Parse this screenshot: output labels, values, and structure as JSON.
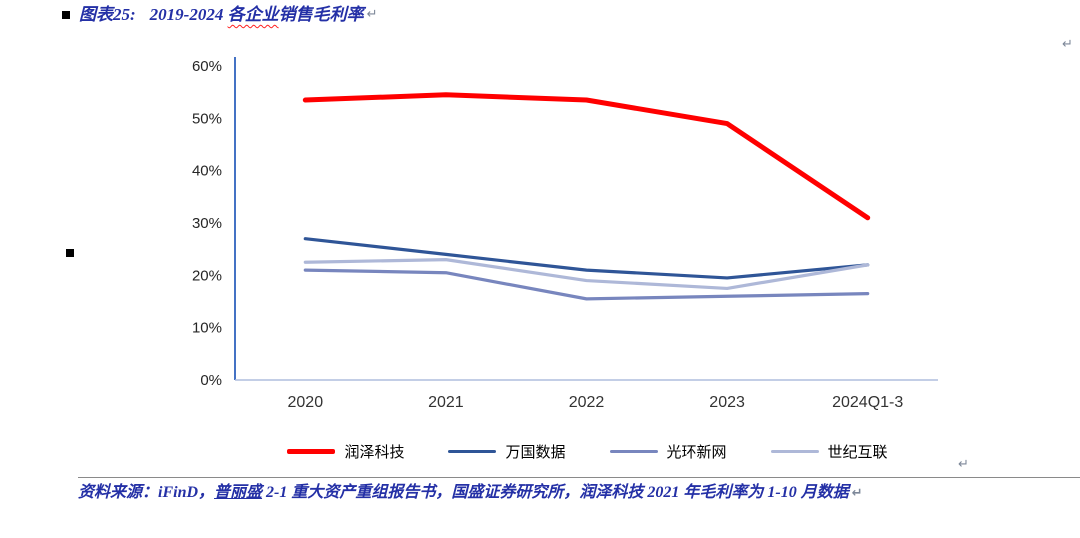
{
  "title": {
    "bullet": "■",
    "label": "图表25:",
    "pre": "2019-2024 ",
    "wavy": "各企业",
    "post": "销售毛利率"
  },
  "marks": {
    "paragraph": "↵",
    "side_bullet": "■"
  },
  "source": {
    "prefix": "资料来源：iFinD，",
    "link": "普丽盛",
    "suffix": " 2-1 重大资产重组报告书，国盛证券研究所，润泽科技 2021 年毛利率为 1-10 月数据"
  },
  "colors": {
    "heading_blue": "#2430A6",
    "axis_line": "#4472C4",
    "baseline": "#AFBEDD",
    "bullet": "#000000",
    "paragraph_mark": "#7C8798"
  },
  "chart_data": {
    "type": "line",
    "title": "图表25: 2019-2024 各企业销售毛利率",
    "categories": [
      "2020",
      "2021",
      "2022",
      "2023",
      "2024Q1-3"
    ],
    "series": [
      {
        "name": "润泽科技",
        "color": "#FF0000",
        "stroke_width": 5,
        "values": [
          53.5,
          54.5,
          53.5,
          49.0,
          31.0
        ]
      },
      {
        "name": "万国数据",
        "color": "#2F5597",
        "stroke_width": 3.2,
        "values": [
          27.0,
          24.0,
          21.0,
          19.5,
          22.0
        ]
      },
      {
        "name": "光环新网",
        "color": "#7886BE",
        "stroke_width": 3.2,
        "values": [
          21.0,
          20.5,
          15.5,
          16.0,
          16.5
        ]
      },
      {
        "name": "世纪互联",
        "color": "#AEB8D8",
        "stroke_width": 3.2,
        "values": [
          22.5,
          23.0,
          19.0,
          17.5,
          22.0
        ]
      }
    ],
    "ylim": [
      0,
      60
    ],
    "ytick_step": 10,
    "ytick_labels": [
      "0%",
      "10%",
      "20%",
      "30%",
      "40%",
      "50%",
      "60%"
    ],
    "xlabel": "",
    "ylabel": "",
    "grid": false,
    "legend_position": "bottom"
  }
}
